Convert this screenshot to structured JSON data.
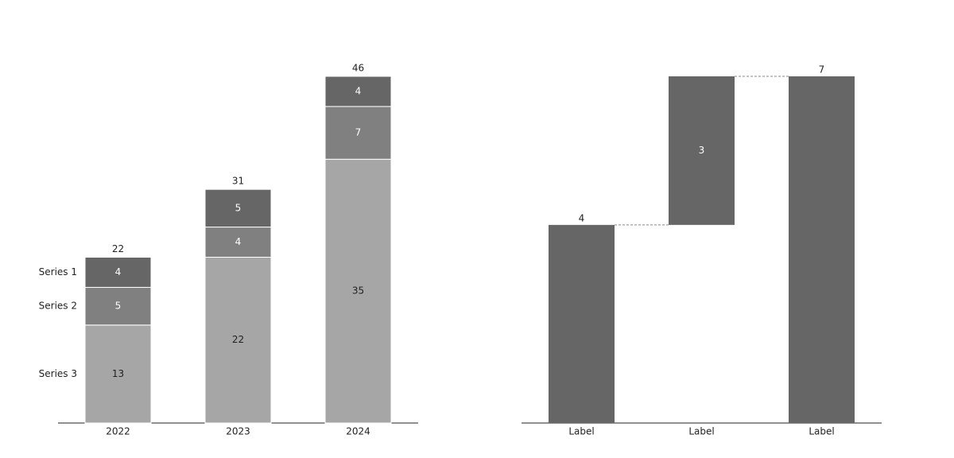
{
  "chart_data": [
    {
      "type": "stacked_bar",
      "categories": [
        "2022",
        "2023",
        "2024"
      ],
      "series": [
        {
          "name": "Series 1",
          "color": "#666666",
          "values": [
            4,
            5,
            4
          ]
        },
        {
          "name": "Series 2",
          "color": "#808080",
          "values": [
            5,
            4,
            7
          ]
        },
        {
          "name": "Series 3",
          "color": "#a6a6a6",
          "values": [
            13,
            22,
            35
          ]
        }
      ],
      "totals": [
        22,
        31,
        46
      ]
    },
    {
      "type": "waterfall",
      "categories": [
        "Label",
        "Label",
        "Label"
      ],
      "values": [
        4,
        3,
        7
      ],
      "is_total": [
        false,
        false,
        true
      ],
      "color": "#666666"
    }
  ]
}
